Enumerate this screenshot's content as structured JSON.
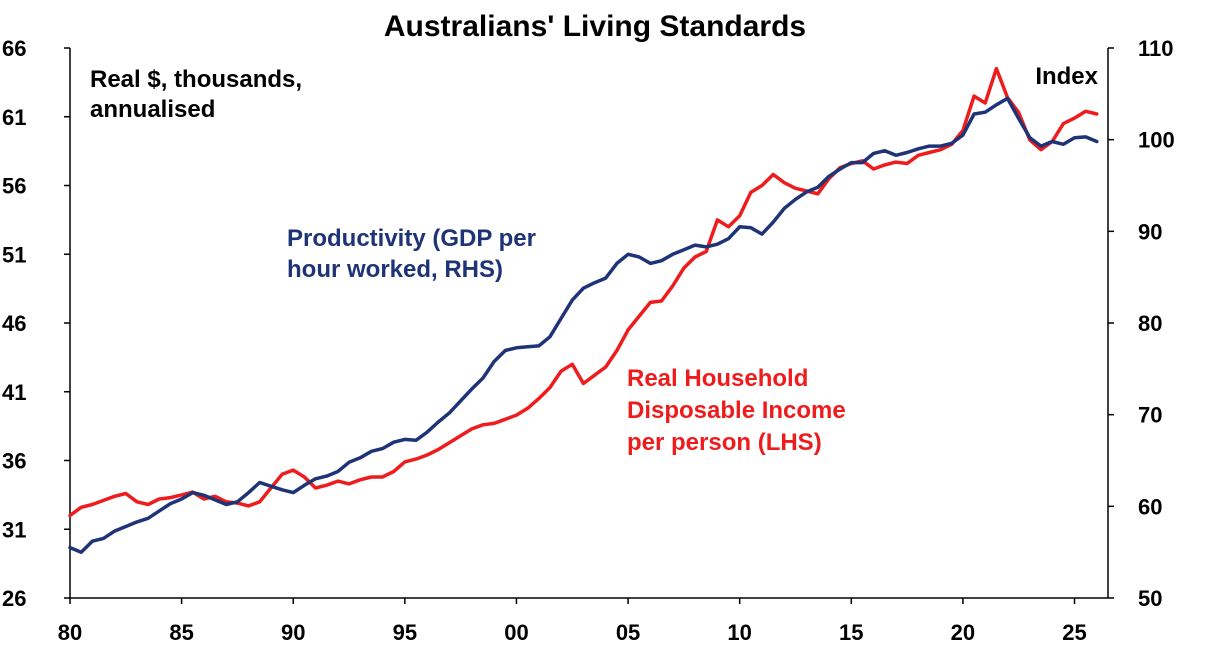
{
  "chart_data": {
    "type": "line",
    "title": "Australians' Living Standards",
    "left_axis": {
      "label_lines": [
        "Real $, thousands,",
        "annualised"
      ],
      "range": [
        26,
        66
      ],
      "ticks": [
        "66",
        "61",
        "56",
        "51",
        "46",
        "41",
        "36",
        "31",
        "26"
      ]
    },
    "right_axis": {
      "label": "Index",
      "range": [
        50,
        110
      ],
      "ticks": [
        "110",
        "100",
        "90",
        "80",
        "70",
        "60",
        "50"
      ]
    },
    "x_axis": {
      "range": [
        1980,
        2026.5
      ],
      "tick_values": [
        1980,
        1985,
        1990,
        1995,
        2000,
        2005,
        2010,
        2015,
        2020,
        2025
      ],
      "tick_labels": [
        "80",
        "85",
        "90",
        "95",
        "00",
        "05",
        "10",
        "15",
        "20",
        "25"
      ]
    },
    "grid": false,
    "series": [
      {
        "name_lines": [
          "Productivity (GDP per",
          "hour worked, RHS)"
        ],
        "axis": "right",
        "color": "#1f3477",
        "points": [
          [
            1980.0,
            55.5
          ],
          [
            1980.5,
            55.0
          ],
          [
            1981.0,
            56.2
          ],
          [
            1981.5,
            56.5
          ],
          [
            1982.0,
            57.3
          ],
          [
            1982.5,
            57.8
          ],
          [
            1983.0,
            58.3
          ],
          [
            1983.5,
            58.7
          ],
          [
            1984.0,
            59.5
          ],
          [
            1984.5,
            60.3
          ],
          [
            1985.0,
            60.8
          ],
          [
            1985.5,
            61.5
          ],
          [
            1986.0,
            61.2
          ],
          [
            1986.5,
            60.7
          ],
          [
            1987.0,
            60.2
          ],
          [
            1987.5,
            60.5
          ],
          [
            1988.0,
            61.5
          ],
          [
            1988.5,
            62.6
          ],
          [
            1989.0,
            62.2
          ],
          [
            1989.5,
            61.8
          ],
          [
            1990.0,
            61.5
          ],
          [
            1990.5,
            62.3
          ],
          [
            1991.0,
            63.0
          ],
          [
            1991.5,
            63.3
          ],
          [
            1992.0,
            63.8
          ],
          [
            1992.5,
            64.8
          ],
          [
            1993.0,
            65.3
          ],
          [
            1993.5,
            66.0
          ],
          [
            1994.0,
            66.3
          ],
          [
            1994.5,
            67.0
          ],
          [
            1995.0,
            67.3
          ],
          [
            1995.5,
            67.2
          ],
          [
            1996.0,
            68.1
          ],
          [
            1996.5,
            69.2
          ],
          [
            1997.0,
            70.2
          ],
          [
            1997.5,
            71.5
          ],
          [
            1998.0,
            72.8
          ],
          [
            1998.5,
            74.0
          ],
          [
            1999.0,
            75.8
          ],
          [
            1999.5,
            77.0
          ],
          [
            2000.0,
            77.3
          ],
          [
            2000.5,
            77.4
          ],
          [
            2001.0,
            77.5
          ],
          [
            2001.5,
            78.5
          ],
          [
            2002.0,
            80.5
          ],
          [
            2002.5,
            82.5
          ],
          [
            2003.0,
            83.8
          ],
          [
            2003.5,
            84.4
          ],
          [
            2004.0,
            84.9
          ],
          [
            2004.5,
            86.5
          ],
          [
            2005.0,
            87.5
          ],
          [
            2005.5,
            87.2
          ],
          [
            2006.0,
            86.5
          ],
          [
            2006.5,
            86.8
          ],
          [
            2007.0,
            87.5
          ],
          [
            2007.5,
            88.0
          ],
          [
            2008.0,
            88.5
          ],
          [
            2008.5,
            88.3
          ],
          [
            2009.0,
            88.6
          ],
          [
            2009.5,
            89.2
          ],
          [
            2010.0,
            90.5
          ],
          [
            2010.5,
            90.4
          ],
          [
            2011.0,
            89.7
          ],
          [
            2011.5,
            91.0
          ],
          [
            2012.0,
            92.5
          ],
          [
            2012.5,
            93.5
          ],
          [
            2013.0,
            94.3
          ],
          [
            2013.5,
            94.8
          ],
          [
            2014.0,
            96.0
          ],
          [
            2014.5,
            96.8
          ],
          [
            2015.0,
            97.5
          ],
          [
            2015.5,
            97.5
          ],
          [
            2016.0,
            98.5
          ],
          [
            2016.5,
            98.8
          ],
          [
            2017.0,
            98.3
          ],
          [
            2017.5,
            98.6
          ],
          [
            2018.0,
            99.0
          ],
          [
            2018.5,
            99.3
          ],
          [
            2019.0,
            99.3
          ],
          [
            2019.5,
            99.6
          ],
          [
            2020.0,
            100.5
          ],
          [
            2020.5,
            102.8
          ],
          [
            2021.0,
            103.0
          ],
          [
            2021.5,
            103.8
          ],
          [
            2022.0,
            104.5
          ],
          [
            2022.5,
            102.3
          ],
          [
            2023.0,
            100.2
          ],
          [
            2023.5,
            99.3
          ],
          [
            2024.0,
            99.8
          ],
          [
            2024.5,
            99.5
          ],
          [
            2025.0,
            100.2
          ],
          [
            2025.5,
            100.3
          ],
          [
            2026.0,
            99.8
          ]
        ]
      },
      {
        "name_lines": [
          "Real Household",
          "Disposable Income",
          "per person (LHS)"
        ],
        "axis": "left",
        "color": "#ee1c1c",
        "points": [
          [
            1980.0,
            32.0
          ],
          [
            1980.5,
            32.6
          ],
          [
            1981.0,
            32.8
          ],
          [
            1981.5,
            33.1
          ],
          [
            1982.0,
            33.4
          ],
          [
            1982.5,
            33.6
          ],
          [
            1983.0,
            33.0
          ],
          [
            1983.5,
            32.8
          ],
          [
            1984.0,
            33.2
          ],
          [
            1984.5,
            33.3
          ],
          [
            1985.0,
            33.5
          ],
          [
            1985.5,
            33.7
          ],
          [
            1986.0,
            33.2
          ],
          [
            1986.5,
            33.4
          ],
          [
            1987.0,
            33.0
          ],
          [
            1987.5,
            32.9
          ],
          [
            1988.0,
            32.7
          ],
          [
            1988.5,
            33.0
          ],
          [
            1989.0,
            34.0
          ],
          [
            1989.5,
            35.0
          ],
          [
            1990.0,
            35.3
          ],
          [
            1990.5,
            34.8
          ],
          [
            1991.0,
            34.0
          ],
          [
            1991.5,
            34.2
          ],
          [
            1992.0,
            34.5
          ],
          [
            1992.5,
            34.3
          ],
          [
            1993.0,
            34.6
          ],
          [
            1993.5,
            34.8
          ],
          [
            1994.0,
            34.8
          ],
          [
            1994.5,
            35.2
          ],
          [
            1995.0,
            35.9
          ],
          [
            1995.5,
            36.1
          ],
          [
            1996.0,
            36.4
          ],
          [
            1996.5,
            36.8
          ],
          [
            1997.0,
            37.3
          ],
          [
            1997.5,
            37.8
          ],
          [
            1998.0,
            38.3
          ],
          [
            1998.5,
            38.6
          ],
          [
            1999.0,
            38.7
          ],
          [
            1999.5,
            39.0
          ],
          [
            2000.0,
            39.3
          ],
          [
            2000.5,
            39.8
          ],
          [
            2001.0,
            40.5
          ],
          [
            2001.5,
            41.3
          ],
          [
            2002.0,
            42.5
          ],
          [
            2002.5,
            43.0
          ],
          [
            2003.0,
            41.6
          ],
          [
            2003.5,
            42.2
          ],
          [
            2004.0,
            42.8
          ],
          [
            2004.5,
            44.0
          ],
          [
            2005.0,
            45.5
          ],
          [
            2005.5,
            46.5
          ],
          [
            2006.0,
            47.5
          ],
          [
            2006.5,
            47.6
          ],
          [
            2007.0,
            48.7
          ],
          [
            2007.5,
            50.0
          ],
          [
            2008.0,
            50.8
          ],
          [
            2008.5,
            51.2
          ],
          [
            2009.0,
            53.5
          ],
          [
            2009.5,
            53.0
          ],
          [
            2010.0,
            53.8
          ],
          [
            2010.5,
            55.5
          ],
          [
            2011.0,
            56.0
          ],
          [
            2011.5,
            56.8
          ],
          [
            2012.0,
            56.2
          ],
          [
            2012.5,
            55.8
          ],
          [
            2013.0,
            55.6
          ],
          [
            2013.5,
            55.4
          ],
          [
            2014.0,
            56.5
          ],
          [
            2014.5,
            57.3
          ],
          [
            2015.0,
            57.6
          ],
          [
            2015.5,
            57.8
          ],
          [
            2016.0,
            57.2
          ],
          [
            2016.5,
            57.5
          ],
          [
            2017.0,
            57.7
          ],
          [
            2017.5,
            57.6
          ],
          [
            2018.0,
            58.2
          ],
          [
            2018.5,
            58.4
          ],
          [
            2019.0,
            58.6
          ],
          [
            2019.5,
            59.0
          ],
          [
            2020.0,
            60.0
          ],
          [
            2020.5,
            62.5
          ],
          [
            2021.0,
            62.0
          ],
          [
            2021.5,
            64.5
          ],
          [
            2022.0,
            62.4
          ],
          [
            2022.5,
            61.3
          ],
          [
            2023.0,
            59.3
          ],
          [
            2023.5,
            58.6
          ],
          [
            2024.0,
            59.2
          ],
          [
            2024.5,
            60.5
          ],
          [
            2025.0,
            60.9
          ],
          [
            2025.5,
            61.4
          ],
          [
            2026.0,
            61.2
          ]
        ]
      }
    ]
  }
}
